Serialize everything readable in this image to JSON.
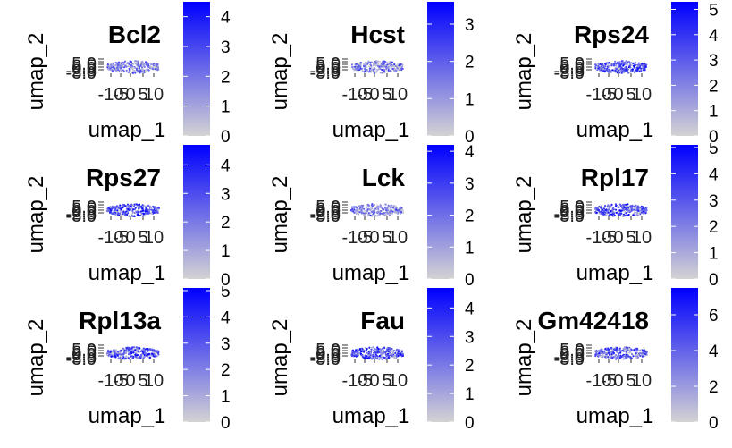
{
  "chart_data": [
    {
      "type": "scatter",
      "title": "Bcl2",
      "xlabel": "umap_1",
      "ylabel": "umap_2",
      "x_ticks": [
        "-10",
        "-5",
        "0",
        "5",
        "10"
      ],
      "y_ticks": [
        "5.0",
        "2.5",
        "0.0",
        "-2.5",
        "-5.0"
      ],
      "colorbar": {
        "min": 0,
        "max": 4.5,
        "ticks": [
          "0",
          "1",
          "2",
          "3",
          "4"
        ],
        "low_color": "#d3d3d3",
        "high_color": "#0000ff"
      },
      "expression": 0.45
    },
    {
      "type": "scatter",
      "title": "Hcst",
      "xlabel": "umap_1",
      "ylabel": "umap_2",
      "x_ticks": [
        "-10",
        "-5",
        "0",
        "5",
        "10"
      ],
      "y_ticks": [
        "5.0",
        "2.5",
        "0.0",
        "-2.5",
        "-5.0"
      ],
      "colorbar": {
        "min": 0,
        "max": 3.6,
        "ticks": [
          "0",
          "1",
          "2",
          "3"
        ],
        "low_color": "#d3d3d3",
        "high_color": "#0000ff"
      },
      "expression": 0.45
    },
    {
      "type": "scatter",
      "title": "Rps24",
      "xlabel": "umap_1",
      "ylabel": "umap_2",
      "x_ticks": [
        "-10",
        "-5",
        "0",
        "5",
        "10"
      ],
      "y_ticks": [
        "5.0",
        "2.5",
        "0.0",
        "-2.5",
        "-5.0"
      ],
      "colorbar": {
        "min": 0,
        "max": 5.3,
        "ticks": [
          "0",
          "1",
          "2",
          "3",
          "4",
          "5"
        ],
        "low_color": "#d3d3d3",
        "high_color": "#0000ff"
      },
      "expression": 0.7
    },
    {
      "type": "scatter",
      "title": "Rps27",
      "xlabel": "umap_1",
      "ylabel": "umap_2",
      "x_ticks": [
        "-10",
        "-5",
        "0",
        "5",
        "10"
      ],
      "y_ticks": [
        "5.0",
        "2.5",
        "0.0",
        "-2.5",
        "-5.0"
      ],
      "colorbar": {
        "min": 0,
        "max": 4.7,
        "ticks": [
          "0",
          "1",
          "2",
          "3",
          "4"
        ],
        "low_color": "#d3d3d3",
        "high_color": "#0000ff"
      },
      "expression": 0.7
    },
    {
      "type": "scatter",
      "title": "Lck",
      "xlabel": "umap_1",
      "ylabel": "umap_2",
      "x_ticks": [
        "-10",
        "-5",
        "0",
        "5",
        "10"
      ],
      "y_ticks": [
        "5.0",
        "2.5",
        "0.0",
        "-2.5",
        "-5.0"
      ],
      "colorbar": {
        "min": 0,
        "max": 4.2,
        "ticks": [
          "0",
          "1",
          "2",
          "3",
          "4"
        ],
        "low_color": "#d3d3d3",
        "high_color": "#0000ff"
      },
      "expression": 0.45
    },
    {
      "type": "scatter",
      "title": "Rpl17",
      "xlabel": "umap_1",
      "ylabel": "umap_2",
      "x_ticks": [
        "-10",
        "-5",
        "0",
        "5",
        "10"
      ],
      "y_ticks": [
        "5.0",
        "2.5",
        "0.0",
        "-2.5",
        "-5.0"
      ],
      "colorbar": {
        "min": 0,
        "max": 5.1,
        "ticks": [
          "0",
          "1",
          "2",
          "3",
          "4",
          "5"
        ],
        "low_color": "#d3d3d3",
        "high_color": "#0000ff"
      },
      "expression": 0.7
    },
    {
      "type": "scatter",
      "title": "Rpl13a",
      "xlabel": "umap_1",
      "ylabel": "umap_2",
      "x_ticks": [
        "-10",
        "-5",
        "0",
        "5",
        "10"
      ],
      "y_ticks": [
        "5.0",
        "2.5",
        "0.0",
        "-2.5",
        "-5.0"
      ],
      "colorbar": {
        "min": 0,
        "max": 5.1,
        "ticks": [
          "0",
          "1",
          "2",
          "3",
          "4",
          "5"
        ],
        "low_color": "#d3d3d3",
        "high_color": "#0000ff"
      },
      "expression": 0.7
    },
    {
      "type": "scatter",
      "title": "Fau",
      "xlabel": "umap_1",
      "ylabel": "umap_2",
      "x_ticks": [
        "-10",
        "-5",
        "0",
        "5",
        "10"
      ],
      "y_ticks": [
        "5.0",
        "2.5",
        "0.0",
        "-2.5",
        "-5.0"
      ],
      "colorbar": {
        "min": 0,
        "max": 4.7,
        "ticks": [
          "0",
          "1",
          "2",
          "3",
          "4"
        ],
        "low_color": "#d3d3d3",
        "high_color": "#0000ff"
      },
      "expression": 0.7
    },
    {
      "type": "scatter",
      "title": "Gm42418",
      "xlabel": "umap_1",
      "ylabel": "umap_2",
      "x_ticks": [
        "-10",
        "-5",
        "0",
        "5",
        "10"
      ],
      "y_ticks": [
        "5.0",
        "2.5",
        "0.0",
        "-2.5",
        "-5.0"
      ],
      "colorbar": {
        "min": 0,
        "max": 7.5,
        "ticks": [
          "0",
          "2",
          "4",
          "6"
        ],
        "low_color": "#d3d3d3",
        "high_color": "#0000ff"
      },
      "expression": 0.6
    }
  ]
}
